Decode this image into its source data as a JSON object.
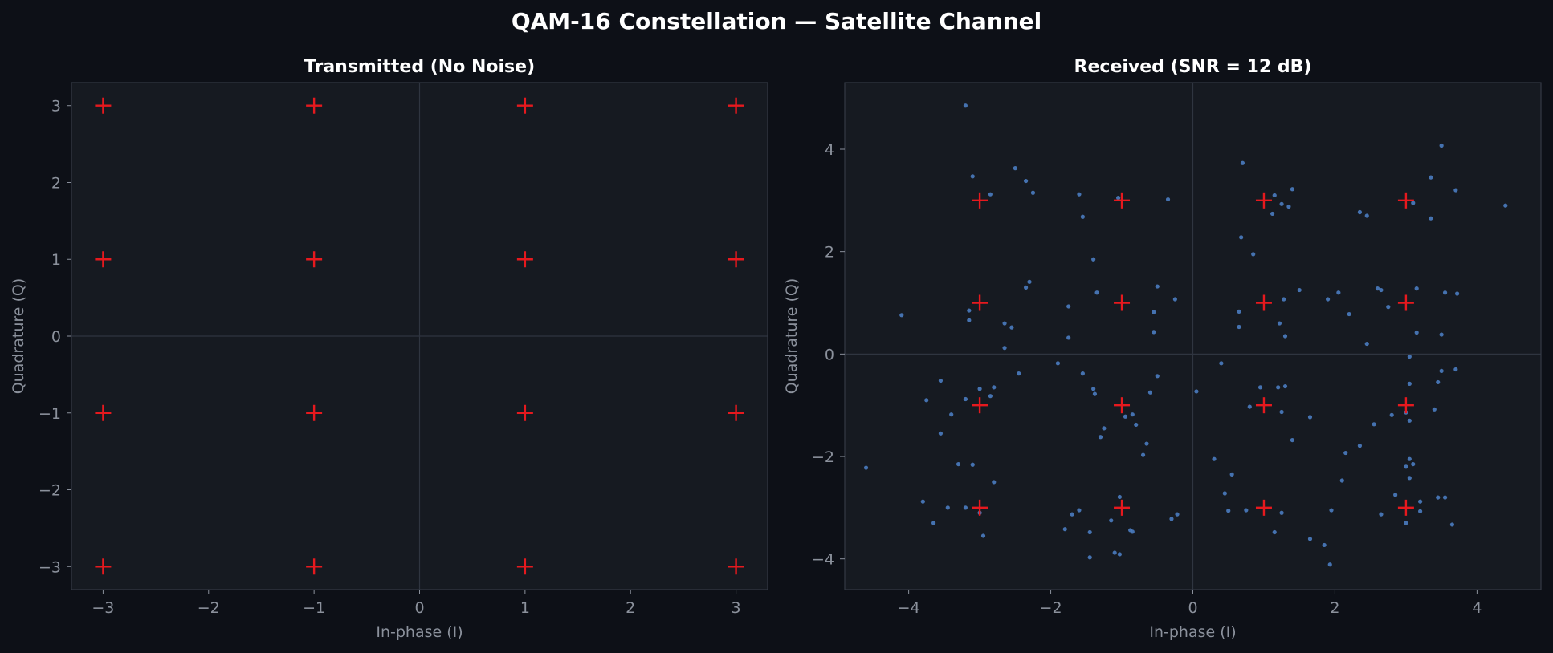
{
  "figure": {
    "title": "QAM-16 Constellation — Satellite Channel"
  },
  "colors": {
    "background": "#0d1017",
    "plot_background": "#161a21",
    "spine": "#343a45",
    "tick_text": "#8b919c",
    "zero_line": "#2f3540",
    "ideal_marker": "#e6191e",
    "received_point": "#4a7cc0"
  },
  "chart_data": [
    {
      "type": "scatter",
      "title": "Transmitted (No Noise)",
      "xlabel": "In-phase (I)",
      "ylabel": "Quadrature (Q)",
      "xlim": [
        -3.3,
        3.3
      ],
      "ylim": [
        -3.3,
        3.3
      ],
      "xticks": [
        -3,
        -2,
        -1,
        0,
        1,
        2,
        3
      ],
      "yticks": [
        -3,
        -2,
        -1,
        0,
        1,
        2,
        3
      ],
      "grid": false,
      "zero_lines": true,
      "ideal_points": [
        [
          -3,
          3
        ],
        [
          -1,
          3
        ],
        [
          1,
          3
        ],
        [
          3,
          3
        ],
        [
          -3,
          1
        ],
        [
          -1,
          1
        ],
        [
          1,
          1
        ],
        [
          3,
          1
        ],
        [
          -3,
          -1
        ],
        [
          -1,
          -1
        ],
        [
          1,
          -1
        ],
        [
          3,
          -1
        ],
        [
          -3,
          -3
        ],
        [
          -1,
          -3
        ],
        [
          1,
          -3
        ],
        [
          3,
          -3
        ]
      ],
      "points": []
    },
    {
      "type": "scatter",
      "title": "Received  (SNR = 12 dB)",
      "xlabel": "In-phase (I)",
      "ylabel": "Quadrature (Q)",
      "xlim": [
        -4.9,
        4.9
      ],
      "ylim": [
        -4.6,
        5.3
      ],
      "xticks": [
        -4,
        -2,
        0,
        2,
        4
      ],
      "yticks": [
        -4,
        -2,
        0,
        2,
        4
      ],
      "grid": false,
      "zero_lines": true,
      "ideal_points": [
        [
          -3,
          3
        ],
        [
          -1,
          3
        ],
        [
          1,
          3
        ],
        [
          3,
          3
        ],
        [
          -3,
          1
        ],
        [
          -1,
          1
        ],
        [
          1,
          1
        ],
        [
          3,
          1
        ],
        [
          -3,
          -1
        ],
        [
          -1,
          -1
        ],
        [
          1,
          -1
        ],
        [
          3,
          -1
        ],
        [
          -3,
          -3
        ],
        [
          -1,
          -3
        ],
        [
          1,
          -3
        ],
        [
          3,
          -3
        ]
      ],
      "points": [
        [
          -3.2,
          4.85
        ],
        [
          -3.1,
          3.47
        ],
        [
          -2.85,
          3.12
        ],
        [
          -2.5,
          3.63
        ],
        [
          -2.35,
          3.38
        ],
        [
          -2.25,
          3.15
        ],
        [
          -1.6,
          3.12
        ],
        [
          -1.55,
          2.68
        ],
        [
          -1.05,
          3.05
        ],
        [
          -0.35,
          3.02
        ],
        [
          0.7,
          3.73
        ],
        [
          1.15,
          3.1
        ],
        [
          1.12,
          2.74
        ],
        [
          1.25,
          2.93
        ],
        [
          1.35,
          2.88
        ],
        [
          1.4,
          3.22
        ],
        [
          3.5,
          4.07
        ],
        [
          3.35,
          3.45
        ],
        [
          3.7,
          3.2
        ],
        [
          4.4,
          2.9
        ],
        [
          2.35,
          2.77
        ],
        [
          2.45,
          2.7
        ],
        [
          3.1,
          2.95
        ],
        [
          3.35,
          2.65
        ],
        [
          0.68,
          2.28
        ],
        [
          0.85,
          1.95
        ],
        [
          1.5,
          1.25
        ],
        [
          1.28,
          1.07
        ],
        [
          -4.1,
          0.76
        ],
        [
          -3.15,
          0.85
        ],
        [
          -3.15,
          0.66
        ],
        [
          -2.65,
          0.6
        ],
        [
          -2.55,
          0.52
        ],
        [
          -2.65,
          0.12
        ],
        [
          -2.35,
          1.3
        ],
        [
          -2.3,
          1.41
        ],
        [
          -1.75,
          0.93
        ],
        [
          -1.4,
          1.85
        ],
        [
          -1.35,
          1.2
        ],
        [
          -1.75,
          0.32
        ],
        [
          -0.5,
          1.32
        ],
        [
          -0.25,
          1.07
        ],
        [
          -0.55,
          0.82
        ],
        [
          -0.55,
          0.43
        ],
        [
          0.65,
          0.83
        ],
        [
          0.65,
          0.53
        ],
        [
          1.22,
          0.6
        ],
        [
          1.3,
          0.35
        ],
        [
          1.9,
          1.07
        ],
        [
          2.05,
          1.2
        ],
        [
          2.2,
          0.78
        ],
        [
          2.6,
          1.28
        ],
        [
          2.65,
          1.25
        ],
        [
          2.75,
          0.92
        ],
        [
          3.15,
          1.28
        ],
        [
          3.15,
          0.42
        ],
        [
          3.55,
          1.2
        ],
        [
          3.72,
          1.18
        ],
        [
          3.5,
          0.38
        ],
        [
          2.45,
          0.2
        ],
        [
          -3.55,
          -0.52
        ],
        [
          -3.75,
          -0.9
        ],
        [
          -3.55,
          -1.55
        ],
        [
          -3.4,
          -1.18
        ],
        [
          -3.2,
          -0.88
        ],
        [
          -3.0,
          -0.68
        ],
        [
          -2.8,
          -0.65
        ],
        [
          -2.85,
          -0.82
        ],
        [
          -2.45,
          -0.38
        ],
        [
          -1.9,
          -0.18
        ],
        [
          -1.55,
          -0.38
        ],
        [
          -1.4,
          -0.68
        ],
        [
          -1.38,
          -0.78
        ],
        [
          -1.3,
          -1.62
        ],
        [
          -1.25,
          -1.45
        ],
        [
          -0.95,
          -1.22
        ],
        [
          -0.85,
          -1.18
        ],
        [
          -0.8,
          -1.38
        ],
        [
          -0.7,
          -1.97
        ],
        [
          -0.65,
          -1.75
        ],
        [
          -0.6,
          -0.75
        ],
        [
          -0.5,
          -0.43
        ],
        [
          0.05,
          -0.73
        ],
        [
          0.3,
          -2.05
        ],
        [
          0.4,
          -0.18
        ],
        [
          0.45,
          -2.72
        ],
        [
          0.55,
          -2.35
        ],
        [
          0.8,
          -1.03
        ],
        [
          0.95,
          -0.65
        ],
        [
          1.2,
          -0.65
        ],
        [
          1.25,
          -1.13
        ],
        [
          1.3,
          -0.63
        ],
        [
          1.4,
          -1.68
        ],
        [
          1.65,
          -1.23
        ],
        [
          2.15,
          -1.93
        ],
        [
          2.35,
          -1.79
        ],
        [
          2.55,
          -1.37
        ],
        [
          2.8,
          -1.19
        ],
        [
          3.05,
          -0.05
        ],
        [
          3.05,
          -0.58
        ],
        [
          3.05,
          -1.3
        ],
        [
          3.0,
          -1.14
        ],
        [
          3.4,
          -1.08
        ],
        [
          3.45,
          -0.55
        ],
        [
          3.5,
          -0.33
        ],
        [
          3.7,
          -0.3
        ],
        [
          3.05,
          -2.05
        ],
        [
          3.0,
          -2.2
        ],
        [
          3.1,
          -2.15
        ],
        [
          3.05,
          -2.42
        ],
        [
          -4.6,
          -2.22
        ],
        [
          -3.8,
          -2.88
        ],
        [
          -3.65,
          -3.3
        ],
        [
          -3.45,
          -3.0
        ],
        [
          -3.3,
          -2.15
        ],
        [
          -3.1,
          -2.16
        ],
        [
          -3.2,
          -3.0
        ],
        [
          -3.0,
          -3.1
        ],
        [
          -2.95,
          -3.55
        ],
        [
          -2.8,
          -2.5
        ],
        [
          -1.8,
          -3.42
        ],
        [
          -1.7,
          -3.13
        ],
        [
          -1.6,
          -3.05
        ],
        [
          -1.45,
          -3.48
        ],
        [
          -1.45,
          -3.97
        ],
        [
          -1.15,
          -3.25
        ],
        [
          -1.1,
          -3.88
        ],
        [
          -1.03,
          -3.91
        ],
        [
          -1.03,
          -2.79
        ],
        [
          -0.85,
          -3.47
        ],
        [
          -0.88,
          -3.44
        ],
        [
          -0.3,
          -3.22
        ],
        [
          -0.22,
          -3.13
        ],
        [
          0.5,
          -3.06
        ],
        [
          0.75,
          -3.05
        ],
        [
          1.15,
          -3.48
        ],
        [
          1.25,
          -3.1
        ],
        [
          1.65,
          -3.61
        ],
        [
          1.85,
          -3.73
        ],
        [
          1.93,
          -4.11
        ],
        [
          1.95,
          -3.05
        ],
        [
          2.1,
          -2.47
        ],
        [
          2.65,
          -3.13
        ],
        [
          2.85,
          -2.75
        ],
        [
          3.2,
          -2.88
        ],
        [
          3.2,
          -3.07
        ],
        [
          3.0,
          -3.3
        ],
        [
          3.45,
          -2.8
        ],
        [
          3.55,
          -2.8
        ],
        [
          3.65,
          -3.33
        ]
      ]
    }
  ]
}
